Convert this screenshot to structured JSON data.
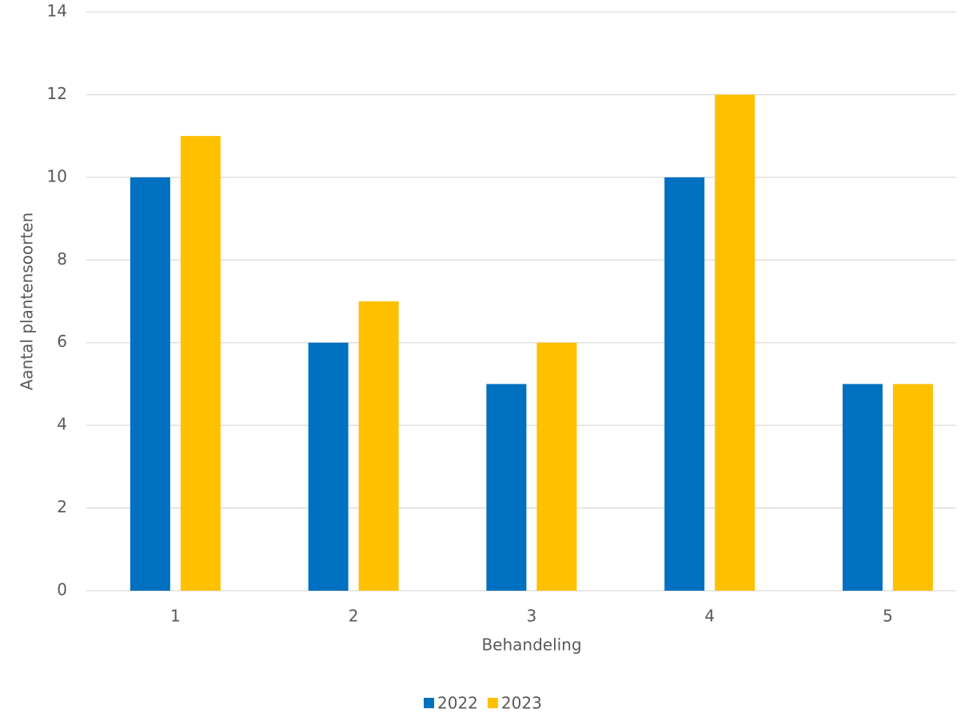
{
  "chart_data": {
    "type": "bar",
    "x_label": "Behandeling",
    "y_label": "Aantal plantensoorten",
    "categories": [
      "1",
      "2",
      "3",
      "4",
      "5"
    ],
    "series": [
      {
        "name": "2022",
        "color": "#0070c0",
        "values": [
          10,
          6,
          5,
          10,
          5
        ]
      },
      {
        "name": "2023",
        "color": "#ffc000",
        "values": [
          11,
          7,
          6,
          12,
          5
        ]
      }
    ],
    "ylim": [
      0,
      14
    ],
    "yticks": [
      0,
      2,
      4,
      6,
      8,
      10,
      12,
      14
    ],
    "grid": true,
    "legend": "bottom"
  }
}
